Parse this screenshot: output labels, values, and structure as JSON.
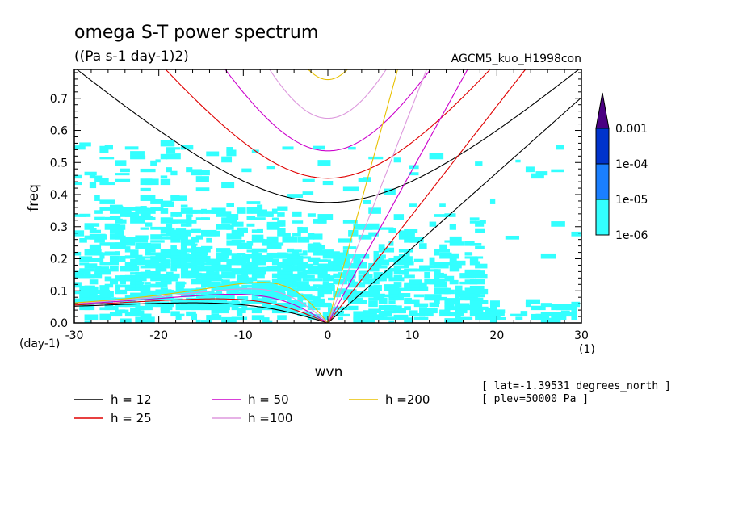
{
  "title": "omega S-T power spectrum",
  "units": "((Pa s-1 day-1)2)",
  "run_name": "AGCM5_kuo_H1998con",
  "chart_data": {
    "type": "heatmap",
    "xlabel": "wvn",
    "ylabel": "freq",
    "x_unit": "(1)",
    "y_unit": "(day-1)",
    "xlim": [
      -30,
      30
    ],
    "ylim": [
      0,
      0.79
    ],
    "xticks": [
      -30,
      -20,
      -10,
      0,
      10,
      20,
      30
    ],
    "xtick_labels": [
      "-30",
      "-20",
      "-10",
      "0",
      "10",
      "20",
      "30"
    ],
    "yticks": [
      0.0,
      0.1,
      0.2,
      0.3,
      0.4,
      0.5,
      0.6,
      0.7
    ],
    "ytick_labels": [
      "0.0",
      "0.1",
      "0.2",
      "0.3",
      "0.4",
      "0.5",
      "0.6",
      "0.7"
    ],
    "colorbar": {
      "levels": [
        "1e-06",
        "1e-05",
        "1e-04",
        "0.001"
      ],
      "colors": [
        "#33ffff",
        "#1a7fff",
        "#0033cc",
        "#4b0082"
      ]
    },
    "dispersion_curves": [
      {
        "h": 12,
        "label": "h = 12",
        "color": "#000000"
      },
      {
        "h": 25,
        "label": "h = 25",
        "color": "#e00000"
      },
      {
        "h": 50,
        "label": "h = 50",
        "color": "#cc00cc"
      },
      {
        "h": 100,
        "label": "h =100",
        "color": "#dd99dd"
      },
      {
        "h": 200,
        "label": "h =200",
        "color": "#e8c000"
      }
    ],
    "annotations": [
      "[ lat=-1.39531 degrees_north ]",
      "[ plev=50000 Pa ]"
    ]
  }
}
